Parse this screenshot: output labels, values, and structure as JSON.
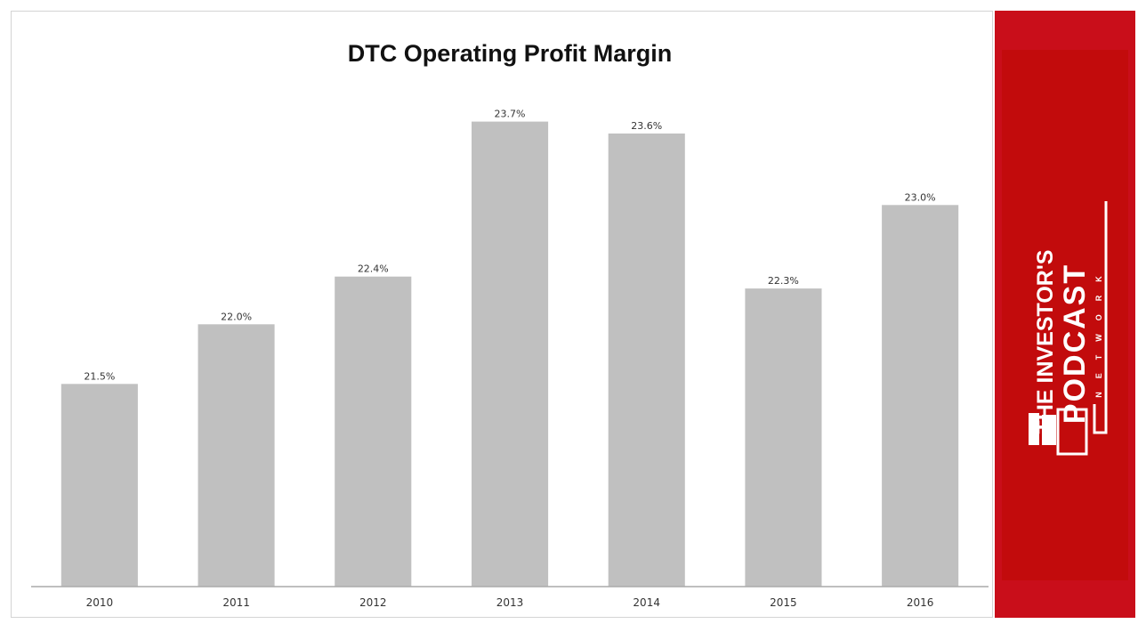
{
  "chart_data": {
    "type": "bar",
    "title": "DTC Operating Profit Margin",
    "xlabel": "",
    "ylabel": "",
    "categories": [
      "2010",
      "2011",
      "2012",
      "2013",
      "2014",
      "2015",
      "2016"
    ],
    "values": [
      21.5,
      22.0,
      22.4,
      23.7,
      23.6,
      22.3,
      23.0
    ],
    "labels": [
      "21.5%",
      "22.0%",
      "22.4%",
      "23.7%",
      "23.6%",
      "22.3%",
      "23.0%"
    ],
    "ylim": [
      19.8,
      24.1
    ],
    "grid": false,
    "legend": "none",
    "bar_color": "#c0c0c0",
    "axis_color": "#aaaaaa"
  },
  "brand": {
    "line1": "THE INVESTOR'S",
    "line2": "PODCAST",
    "line3": "NETWORK",
    "panel_color": "#c90e1a",
    "inner_color": "#c20b0c",
    "icon": "book-stack-logo-icon"
  }
}
